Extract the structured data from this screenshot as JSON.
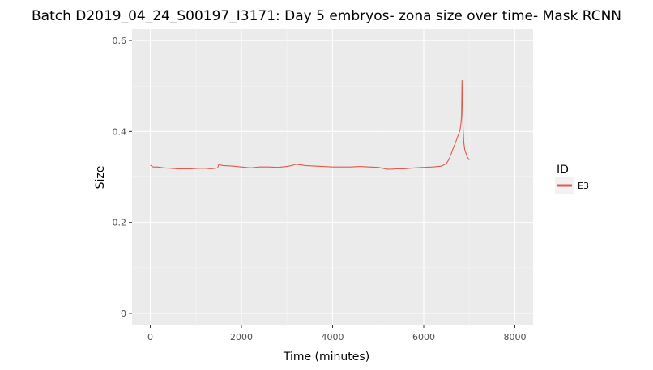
{
  "chart_data": {
    "type": "line",
    "title": "Batch D2019_04_24_S00197_I3171: Day 5 embryos- zona size over time- Mask RCNN",
    "xlabel": "Time (minutes)",
    "ylabel": "Size",
    "xlim": [
      -400,
      8400
    ],
    "ylim": [
      -0.025,
      0.625
    ],
    "x_ticks": [
      0,
      2000,
      4000,
      6000,
      8000
    ],
    "x_tick_labels": [
      "0",
      "2000",
      "4000",
      "6000",
      "8000"
    ],
    "y_ticks": [
      0,
      0.2,
      0.4,
      0.6
    ],
    "y_tick_labels": [
      "0",
      "0.2",
      "0.4",
      "0.6"
    ],
    "grid": true,
    "legend": {
      "title": "ID",
      "position": "right"
    },
    "series": [
      {
        "name": "E3",
        "color": "#e05a4f",
        "x": [
          0,
          60,
          150,
          300,
          450,
          600,
          750,
          900,
          1050,
          1200,
          1350,
          1480,
          1500,
          1600,
          1800,
          2000,
          2200,
          2400,
          2600,
          2800,
          3000,
          3100,
          3200,
          3400,
          3600,
          3800,
          4000,
          4200,
          4400,
          4600,
          4800,
          5000,
          5200,
          5300,
          5400,
          5600,
          5800,
          6000,
          6200,
          6400,
          6500,
          6550,
          6600,
          6650,
          6700,
          6750,
          6780,
          6800,
          6820,
          6830,
          6840,
          6850,
          6860,
          6880,
          6900,
          6950,
          7000
        ],
        "y": [
          0.326,
          0.322,
          0.322,
          0.32,
          0.319,
          0.318,
          0.318,
          0.318,
          0.319,
          0.319,
          0.318,
          0.32,
          0.327,
          0.325,
          0.324,
          0.322,
          0.32,
          0.322,
          0.322,
          0.321,
          0.323,
          0.325,
          0.328,
          0.325,
          0.324,
          0.323,
          0.322,
          0.322,
          0.322,
          0.323,
          0.322,
          0.321,
          0.317,
          0.317,
          0.318,
          0.318,
          0.32,
          0.321,
          0.322,
          0.324,
          0.33,
          0.338,
          0.35,
          0.364,
          0.376,
          0.39,
          0.398,
          0.405,
          0.42,
          0.435,
          0.512,
          0.47,
          0.415,
          0.375,
          0.36,
          0.345,
          0.337
        ]
      }
    ]
  }
}
